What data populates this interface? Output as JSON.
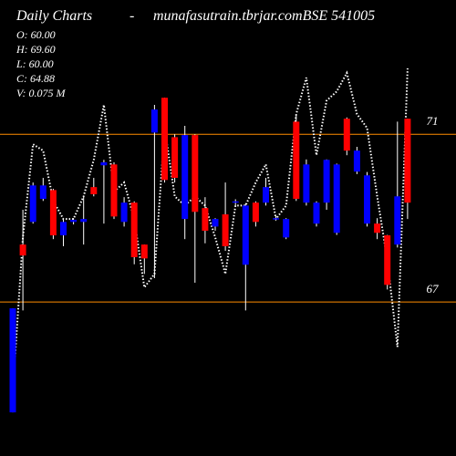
{
  "chart_data": {
    "type": "candlestick",
    "title": "Daily Charts",
    "separator": "-",
    "site": "munafasutrain.tbrjar.com",
    "symbol": "BSE 541005",
    "info": [
      "O: 60.00",
      "H: 69.60",
      "L: 60.00",
      "C: 64.88",
      "V: 0.075 M"
    ],
    "ylim": [
      63.33,
      74.2
    ],
    "yticks": [
      67,
      71
    ],
    "tick_color": "#ff8c00",
    "up_color": "#0000ff",
    "down_color": "#ff0000",
    "line_color": "#ffffff",
    "candles": [
      {
        "open": 64.37,
        "high": 66.85,
        "low": 64.37,
        "close": 66.85
      },
      {
        "open": 68.37,
        "high": 69.2,
        "low": 66.8,
        "close": 68.11
      },
      {
        "open": 68.91,
        "high": 69.85,
        "low": 68.87,
        "close": 69.78
      },
      {
        "open": 69.46,
        "high": 69.96,
        "low": 69.41,
        "close": 69.78
      },
      {
        "open": 69.67,
        "high": 69.7,
        "low": 68.5,
        "close": 68.59
      },
      {
        "open": 68.59,
        "high": 68.98,
        "low": 68.33,
        "close": 68.91
      },
      {
        "open": 68.91,
        "high": 69.0,
        "low": 68.85,
        "close": 68.96
      },
      {
        "open": 68.91,
        "high": 69.52,
        "low": 68.37,
        "close": 68.98
      },
      {
        "open": 69.74,
        "high": 69.96,
        "low": 69.52,
        "close": 69.57
      },
      {
        "open": 70.26,
        "high": 70.39,
        "low": 68.87,
        "close": 70.33
      },
      {
        "open": 70.28,
        "high": 70.33,
        "low": 68.98,
        "close": 69.04
      },
      {
        "open": 68.91,
        "high": 69.5,
        "low": 68.8,
        "close": 69.37
      },
      {
        "open": 69.37,
        "high": 69.4,
        "low": 67.9,
        "close": 68.07
      },
      {
        "open": 68.37,
        "high": 68.37,
        "low": 67.67,
        "close": 68.04
      },
      {
        "open": 71.04,
        "high": 71.7,
        "low": 67.57,
        "close": 71.59
      },
      {
        "open": 71.87,
        "high": 71.87,
        "low": 69.85,
        "close": 69.91
      },
      {
        "open": 70.93,
        "high": 71.0,
        "low": 69.85,
        "close": 69.96
      },
      {
        "open": 68.98,
        "high": 71.2,
        "low": 68.5,
        "close": 70.98
      },
      {
        "open": 70.98,
        "high": 71.0,
        "low": 67.46,
        "close": 69.15
      },
      {
        "open": 69.24,
        "high": 69.5,
        "low": 68.4,
        "close": 68.7
      },
      {
        "open": 68.8,
        "high": 69.0,
        "low": 68.7,
        "close": 68.98
      },
      {
        "open": 69.09,
        "high": 69.85,
        "low": 68.22,
        "close": 68.33
      },
      {
        "open": 69.37,
        "high": 69.45,
        "low": 69.3,
        "close": 69.4
      },
      {
        "open": 67.89,
        "high": 69.35,
        "low": 66.8,
        "close": 69.3
      },
      {
        "open": 69.37,
        "high": 69.4,
        "low": 68.8,
        "close": 68.91
      },
      {
        "open": 69.37,
        "high": 69.96,
        "low": 69.3,
        "close": 69.74
      },
      {
        "open": 68.98,
        "high": 69.05,
        "low": 68.95,
        "close": 69.0
      },
      {
        "open": 68.54,
        "high": 69.0,
        "low": 68.5,
        "close": 68.98
      },
      {
        "open": 71.3,
        "high": 71.48,
        "low": 69.41,
        "close": 69.46
      },
      {
        "open": 69.37,
        "high": 70.4,
        "low": 69.3,
        "close": 70.28
      },
      {
        "open": 68.87,
        "high": 69.4,
        "low": 68.8,
        "close": 69.37
      },
      {
        "open": 69.37,
        "high": 70.4,
        "low": 69.2,
        "close": 70.39
      },
      {
        "open": 68.65,
        "high": 70.3,
        "low": 68.6,
        "close": 70.28
      },
      {
        "open": 71.37,
        "high": 71.4,
        "low": 70.5,
        "close": 70.61
      },
      {
        "open": 70.11,
        "high": 70.7,
        "low": 70.05,
        "close": 70.61
      },
      {
        "open": 68.87,
        "high": 70.1,
        "low": 68.8,
        "close": 70.02
      },
      {
        "open": 68.87,
        "high": 69.0,
        "low": 68.5,
        "close": 68.65
      },
      {
        "open": 68.59,
        "high": 68.6,
        "low": 67.3,
        "close": 67.41
      },
      {
        "open": 68.37,
        "high": 71.3,
        "low": 68.3,
        "close": 69.52
      },
      {
        "open": 71.37,
        "high": 71.37,
        "low": 68.98,
        "close": 69.37
      }
    ],
    "line": [
      64.85,
      68.54,
      70.76,
      70.61,
      69.41,
      68.98,
      68.98,
      69.52,
      70.39,
      71.7,
      69.63,
      69.85,
      68.98,
      67.35,
      67.67,
      71.15,
      69.52,
      69.3,
      69.52,
      69.3,
      68.54,
      67.67,
      69.3,
      69.3,
      69.85,
      70.28,
      68.98,
      69.3,
      71.48,
      72.35,
      70.5,
      71.8,
      72.02,
      72.46,
      71.48,
      71.15,
      69.52,
      68.0,
      65.93,
      72.57
    ]
  }
}
